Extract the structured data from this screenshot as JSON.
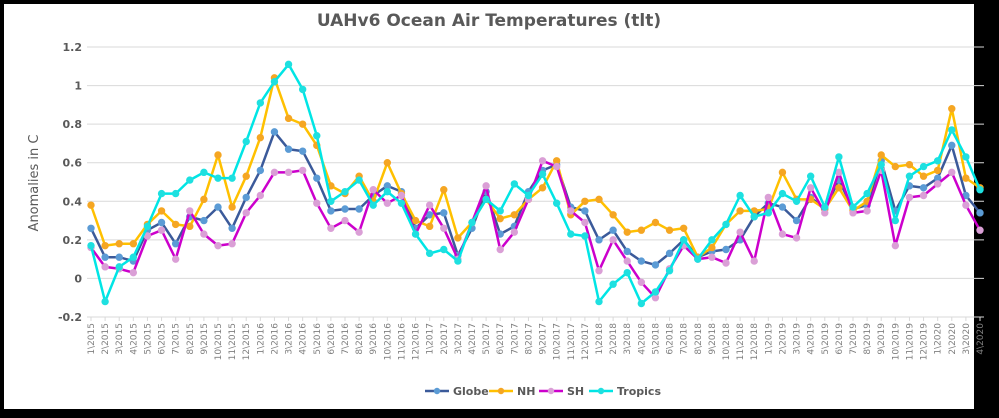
{
  "chart_data": {
    "type": "line",
    "title": "UAHv6 Ocean Air Temperatures (tlt)",
    "xlabel": "",
    "ylabel": "Anomalies in C",
    "ylim": [
      -0.2,
      1.2
    ],
    "yticks": [
      -0.2,
      0,
      0.2,
      0.4,
      0.6,
      0.8,
      1,
      1.2
    ],
    "ytick_labels": [
      "-0.2",
      "0",
      "0.2",
      "0.4",
      "0.6",
      "0.8",
      "1",
      "1.2"
    ],
    "grid": true,
    "legend_position": "bottom",
    "categories": [
      "1\\2015",
      "2\\2015",
      "3\\2015",
      "4\\2015",
      "5\\2015",
      "6\\2015",
      "7\\2015",
      "8\\2015",
      "9\\2015",
      "10\\2015",
      "11\\2015",
      "12\\2015",
      "1\\2016",
      "2\\2016",
      "3\\2016",
      "4\\2016",
      "5\\2016",
      "6\\2016",
      "7\\2016",
      "8\\2016",
      "9\\2016",
      "10\\2016",
      "11\\2016",
      "12\\2016",
      "1\\2017",
      "2\\2017",
      "3\\2017",
      "4\\2017",
      "5\\2017",
      "6\\2017",
      "7\\2017",
      "8\\2017",
      "9\\2017",
      "10\\2017",
      "11\\2017",
      "12\\2017",
      "1\\2018",
      "2\\2018",
      "3\\2018",
      "4\\2018",
      "5\\2018",
      "6\\2018",
      "7\\2018",
      "8\\2018",
      "9\\2018",
      "10\\2018",
      "11\\2018",
      "12\\2018",
      "1\\2019",
      "2\\2019",
      "3\\2019",
      "4\\2019",
      "5\\2019",
      "6\\2019",
      "7\\2019",
      "8\\2019",
      "9\\2019",
      "10\\2019",
      "11\\2019",
      "12\\2019",
      "1\\2020",
      "2\\2020",
      "3\\2020",
      "4\\2020"
    ],
    "series": [
      {
        "name": "Globe",
        "color": "#3b5a9a",
        "marker": "#5b9bd5",
        "values": [
          0.26,
          0.11,
          0.11,
          0.09,
          0.25,
          0.29,
          0.18,
          0.32,
          0.3,
          0.37,
          0.26,
          0.42,
          0.56,
          0.76,
          0.67,
          0.66,
          0.52,
          0.35,
          0.36,
          0.36,
          0.43,
          0.48,
          0.45,
          0.26,
          0.33,
          0.34,
          0.12,
          0.26,
          0.45,
          0.23,
          0.27,
          0.45,
          0.56,
          0.59,
          0.37,
          0.35,
          0.2,
          0.25,
          0.14,
          0.09,
          0.07,
          0.13,
          0.2,
          0.11,
          0.14,
          0.15,
          0.2,
          0.32,
          0.39,
          0.37,
          0.3,
          0.42,
          0.36,
          0.51,
          0.36,
          0.38,
          0.61,
          0.35,
          0.48,
          0.47,
          0.52,
          0.69,
          0.43,
          0.34
        ]
      },
      {
        "name": "NH",
        "color": "#ffc000",
        "marker": "#f5a623",
        "values": [
          0.38,
          0.17,
          0.18,
          0.18,
          0.28,
          0.35,
          0.28,
          0.27,
          0.41,
          0.64,
          0.37,
          0.53,
          0.73,
          1.04,
          0.83,
          0.8,
          0.69,
          0.48,
          0.44,
          0.53,
          0.4,
          0.6,
          0.44,
          0.3,
          0.27,
          0.46,
          0.21,
          0.29,
          0.41,
          0.31,
          0.33,
          0.41,
          0.47,
          0.61,
          0.33,
          0.4,
          0.41,
          0.33,
          0.24,
          0.25,
          0.29,
          0.25,
          0.26,
          0.11,
          0.16,
          0.28,
          0.35,
          0.35,
          0.36,
          0.55,
          0.41,
          0.41,
          0.36,
          0.47,
          0.35,
          0.4,
          0.64,
          0.58,
          0.59,
          0.53,
          0.56,
          0.88,
          0.52,
          0.47
        ]
      },
      {
        "name": "SH",
        "color": "#cc00cc",
        "marker": "#da9fd6",
        "values": [
          0.16,
          0.06,
          0.05,
          0.03,
          0.22,
          0.25,
          0.1,
          0.35,
          0.23,
          0.17,
          0.18,
          0.34,
          0.43,
          0.55,
          0.55,
          0.56,
          0.39,
          0.26,
          0.3,
          0.24,
          0.46,
          0.39,
          0.43,
          0.23,
          0.38,
          0.26,
          0.1,
          0.29,
          0.48,
          0.15,
          0.24,
          0.41,
          0.61,
          0.58,
          0.35,
          0.29,
          0.04,
          0.2,
          0.09,
          -0.02,
          -0.1,
          0.05,
          0.17,
          0.1,
          0.11,
          0.08,
          0.24,
          0.09,
          0.42,
          0.23,
          0.21,
          0.47,
          0.34,
          0.55,
          0.34,
          0.35,
          0.56,
          0.17,
          0.42,
          0.43,
          0.49,
          0.55,
          0.38,
          0.25
        ]
      },
      {
        "name": "Tropics",
        "color": "#00e5e5",
        "marker": "#1ee0e0",
        "values": [
          0.17,
          -0.12,
          0.06,
          0.11,
          0.27,
          0.44,
          0.44,
          0.51,
          0.55,
          0.52,
          0.52,
          0.71,
          0.91,
          1.02,
          1.11,
          0.98,
          0.74,
          0.4,
          0.45,
          0.51,
          0.38,
          0.45,
          0.39,
          0.23,
          0.13,
          0.15,
          0.09,
          0.29,
          0.41,
          0.35,
          0.49,
          0.43,
          0.54,
          0.39,
          0.23,
          0.22,
          -0.12,
          -0.03,
          0.03,
          -0.13,
          -0.07,
          0.04,
          0.2,
          0.1,
          0.2,
          0.28,
          0.43,
          0.32,
          0.34,
          0.44,
          0.4,
          0.53,
          0.37,
          0.63,
          0.37,
          0.44,
          0.59,
          0.3,
          0.53,
          0.58,
          0.61,
          0.77,
          0.63,
          0.46
        ]
      }
    ]
  }
}
